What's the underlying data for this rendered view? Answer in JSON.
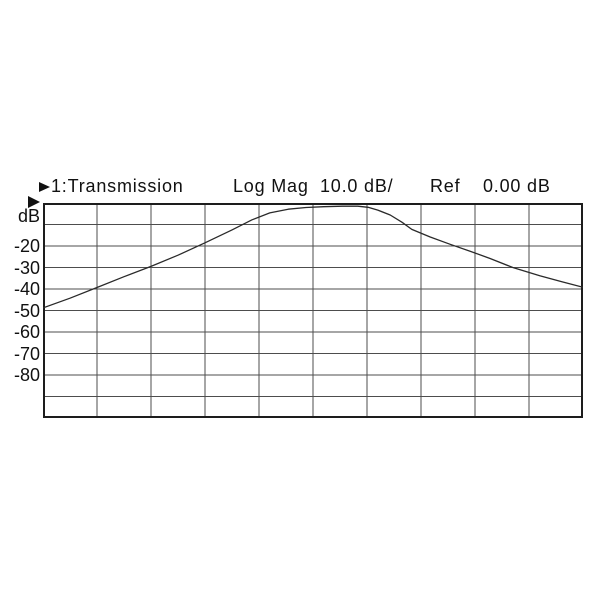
{
  "header": {
    "trace_label": "1:Transmission",
    "format_label": "Log Mag",
    "scale_label": "10.0 dB/",
    "ref_label": "Ref",
    "ref_value": "0.00 dB",
    "channel_marker_icon": "right-triangle",
    "ref_level_marker_icon": "right-triangle"
  },
  "yaxis": {
    "unit_label": "dB",
    "tick_labels": [
      "-20",
      "-30",
      "-40",
      "-50",
      "-60",
      "-70",
      "-80"
    ]
  },
  "colors": {
    "background": "#ffffff",
    "text": "#111111",
    "grid": "#4d4d4d",
    "border": "#1d1d1d",
    "trace": "#2a2a2a"
  },
  "chart_data": {
    "type": "line",
    "title": "1:Transmission  Log Mag  10.0 dB/  Ref 0.00 dB",
    "ylabel": "dB",
    "ylim": [
      -100,
      0
    ],
    "db_per_div": 10,
    "ref_db": 0.0,
    "x_divisions": 10,
    "grid": true,
    "x_note": "sweep axis unlabeled; x given as fraction of sweep 0..1",
    "series": [
      {
        "name": "1:Transmission",
        "points": [
          [
            0.0,
            -48.8
          ],
          [
            0.05,
            -44.3
          ],
          [
            0.1,
            -39.3
          ],
          [
            0.15,
            -34.3
          ],
          [
            0.2,
            -29.5
          ],
          [
            0.25,
            -24.3
          ],
          [
            0.3,
            -18.5
          ],
          [
            0.35,
            -12.5
          ],
          [
            0.387,
            -7.8
          ],
          [
            0.42,
            -4.6
          ],
          [
            0.454,
            -2.9
          ],
          [
            0.487,
            -2.1
          ],
          [
            0.52,
            -1.7
          ],
          [
            0.554,
            -1.5
          ],
          [
            0.583,
            -1.5
          ],
          [
            0.602,
            -2.0
          ],
          [
            0.62,
            -3.3
          ],
          [
            0.643,
            -5.6
          ],
          [
            0.665,
            -9.0
          ],
          [
            0.683,
            -12.3
          ],
          [
            0.717,
            -15.8
          ],
          [
            0.754,
            -19.2
          ],
          [
            0.791,
            -22.4
          ],
          [
            0.828,
            -25.8
          ],
          [
            0.87,
            -30.0
          ],
          [
            0.92,
            -33.8
          ],
          [
            0.961,
            -36.6
          ],
          [
            1.0,
            -39.2
          ]
        ]
      }
    ]
  }
}
